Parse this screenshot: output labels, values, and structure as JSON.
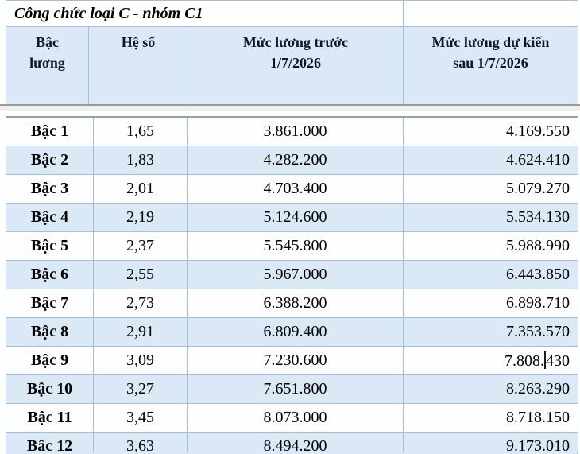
{
  "document": {
    "title": "Công chức loại C - nhóm C1"
  },
  "table": {
    "headers": [
      {
        "id": "bac-luong",
        "lines": [
          "Bậc",
          "lương"
        ]
      },
      {
        "id": "he-so",
        "lines": [
          "Hệ số"
        ]
      },
      {
        "id": "muc-luong-truoc",
        "lines": [
          "Mức lương trước",
          "1/7/2026"
        ]
      },
      {
        "id": "muc-luong-du-kien",
        "lines": [
          "Mức lương dự kiến",
          "sau 1/7/2026"
        ]
      }
    ],
    "rows": [
      {
        "label": "Bậc 1",
        "he_so": "1,65",
        "truoc": "3.861.000",
        "sau": "4.169.550"
      },
      {
        "label": "Bậc 2",
        "he_so": "1,83",
        "truoc": "4.282.200",
        "sau": "4.624.410"
      },
      {
        "label": "Bậc 3",
        "he_so": "2,01",
        "truoc": "4.703.400",
        "sau": "5.079.270"
      },
      {
        "label": "Bậc 4",
        "he_so": "2,19",
        "truoc": "5.124.600",
        "sau": "5.534.130"
      },
      {
        "label": "Bậc 5",
        "he_so": "2,37",
        "truoc": "5.545.800",
        "sau": "5.988.990"
      },
      {
        "label": "Bậc 6",
        "he_so": "2,55",
        "truoc": "5.967.000",
        "sau": "6.443.850"
      },
      {
        "label": "Bậc 7",
        "he_so": "2,73",
        "truoc": "6.388.200",
        "sau": "6.898.710"
      },
      {
        "label": "Bậc 8",
        "he_so": "2,91",
        "truoc": "6.809.400",
        "sau": "7.353.570"
      },
      {
        "label": "Bậc 9",
        "he_so": "3,09",
        "truoc": "7.230.600",
        "sau": "7.808.430"
      },
      {
        "label": "Bậc 10",
        "he_so": "3,27",
        "truoc": "7.651.800",
        "sau": "8.263.290"
      },
      {
        "label": "Bậc 11",
        "he_so": "3,45",
        "truoc": "8.073.000",
        "sau": "8.718.150"
      },
      {
        "label": "Bậc 12",
        "he_so": "3,63",
        "truoc": "8.494.200",
        "sau": "9.173.010"
      }
    ],
    "caret": {
      "row_label": "Bậc 9",
      "column": "sau",
      "text_before": "7.808.",
      "text_after": "430"
    }
  },
  "colors": {
    "band_blue": "#dbe8f5",
    "row_white": "#fefefe",
    "border_blue": "#a2bedb",
    "seam_grey": "#efefec"
  }
}
